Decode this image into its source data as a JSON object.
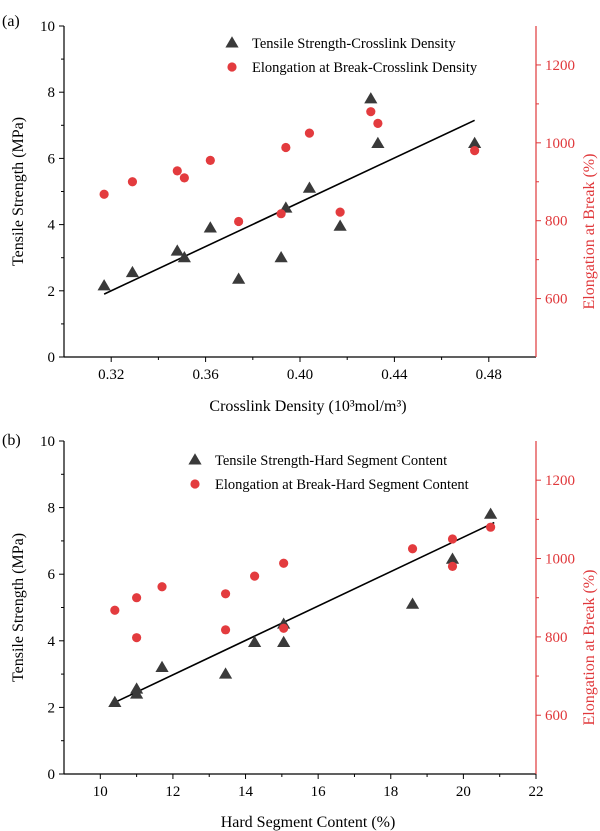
{
  "colors": {
    "triangle": "#3a3a3a",
    "circle": "#e33b3e",
    "right_axis": "#e0383b"
  },
  "chart_data": [
    {
      "type": "scatter",
      "panel_label": "(a)",
      "xlabel": "Crosslink Density (10³mol/m³)",
      "ylabel": "Tensile Strength (MPa)",
      "y2label": "Elongation at Break (%)",
      "xlim": [
        0.3,
        0.5
      ],
      "ylim": [
        0,
        10
      ],
      "y2lim": [
        450,
        1300
      ],
      "xticks": [
        "0.32",
        "0.36",
        "0.40",
        "0.44",
        "0.48"
      ],
      "xtick_values": [
        0.32,
        0.36,
        0.4,
        0.44,
        0.48
      ],
      "yticks": [
        "0",
        "2",
        "4",
        "6",
        "8",
        "10"
      ],
      "ytick_values": [
        0,
        2,
        4,
        6,
        8,
        10
      ],
      "y2ticks": [
        "600",
        "800",
        "1000",
        "1200"
      ],
      "y2tick_values": [
        600,
        800,
        1000,
        1200
      ],
      "legend_position": "top-right",
      "series": [
        {
          "name": "Tensile Strength-Crosslink Density",
          "marker": "triangle",
          "axis": "left",
          "x": [
            0.317,
            0.329,
            0.348,
            0.351,
            0.362,
            0.374,
            0.392,
            0.394,
            0.404,
            0.417,
            0.43,
            0.433,
            0.474
          ],
          "y": [
            2.15,
            2.55,
            3.2,
            3.0,
            3.9,
            2.35,
            3.0,
            4.5,
            5.1,
            3.95,
            7.8,
            6.45,
            6.45
          ]
        },
        {
          "name": "Elongation at Break-Crosslink Density",
          "marker": "circle",
          "axis": "right",
          "x": [
            0.317,
            0.329,
            0.348,
            0.351,
            0.362,
            0.374,
            0.392,
            0.394,
            0.404,
            0.417,
            0.43,
            0.433,
            0.474
          ],
          "y": [
            868,
            900,
            928,
            910,
            955,
            798,
            818,
            988,
            1025,
            822,
            1080,
            1050,
            980
          ]
        }
      ],
      "fit_line": {
        "x": [
          0.317,
          0.474
        ],
        "y": [
          1.9,
          7.15
        ]
      }
    },
    {
      "type": "scatter",
      "panel_label": "(b)",
      "xlabel": "Hard Segment Content (%)",
      "ylabel": "Tensile Strength (MPa)",
      "y2label": "Elongation at Break (%)",
      "xlim": [
        9,
        22
      ],
      "ylim": [
        0,
        10
      ],
      "y2lim": [
        450,
        1300
      ],
      "xticks": [
        "10",
        "12",
        "14",
        "16",
        "18",
        "20",
        "22"
      ],
      "xtick_values": [
        10,
        12,
        14,
        16,
        18,
        20,
        22
      ],
      "yticks": [
        "0",
        "2",
        "4",
        "6",
        "8",
        "10"
      ],
      "ytick_values": [
        0,
        2,
        4,
        6,
        8,
        10
      ],
      "y2ticks": [
        "600",
        "800",
        "1000",
        "1200"
      ],
      "y2tick_values": [
        600,
        800,
        1000,
        1200
      ],
      "legend_position": "top-right",
      "series": [
        {
          "name": "Tensile Strength-Hard Segment Content",
          "marker": "triangle",
          "axis": "left",
          "x": [
            10.4,
            11.0,
            11.0,
            11.7,
            13.45,
            14.25,
            15.05,
            15.05,
            18.6,
            19.7,
            20.75
          ],
          "y": [
            2.15,
            2.55,
            2.4,
            3.2,
            3.0,
            3.95,
            4.5,
            3.95,
            5.1,
            6.45,
            7.8
          ],
          "name_marker": "triangle"
        },
        {
          "name": "Elongation at Break-Hard Segment Content",
          "marker": "circle",
          "axis": "right",
          "x": [
            10.4,
            11.0,
            11.0,
            11.7,
            13.45,
            13.45,
            14.25,
            15.05,
            15.05,
            18.6,
            19.7,
            19.7,
            20.75
          ],
          "y": [
            868,
            900,
            798,
            928,
            910,
            818,
            955,
            988,
            822,
            1025,
            1050,
            980,
            1080
          ]
        }
      ],
      "fit_line": {
        "x": [
          10.3,
          20.85
        ],
        "y": [
          2.1,
          7.55
        ]
      }
    }
  ]
}
